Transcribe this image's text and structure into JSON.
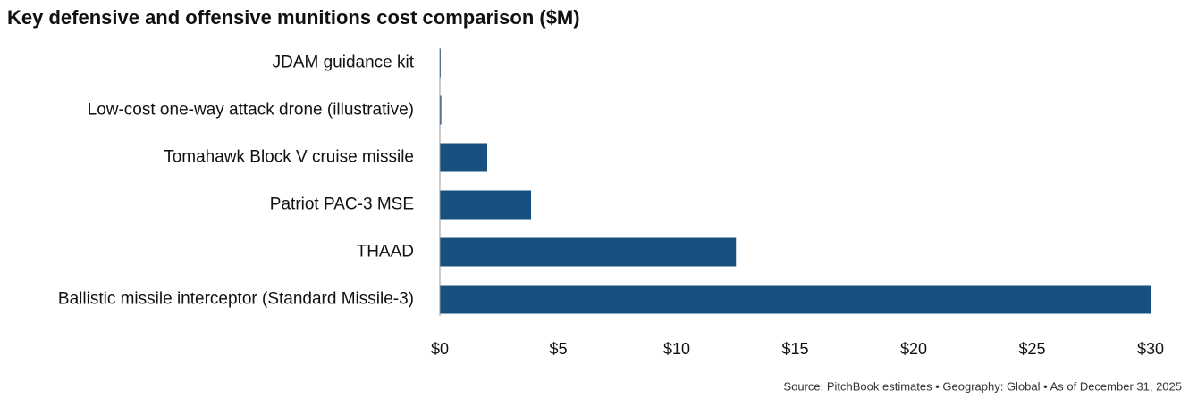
{
  "chart_data": {
    "type": "bar",
    "orientation": "horizontal",
    "title": "Key defensive and offensive munitions cost comparison ($M)",
    "categories": [
      "JDAM guidance kit",
      "Low-cost one-way attack drone (illustrative)",
      "Tomahawk Block V cruise missile",
      "Patriot PAC-3 MSE",
      "THAAD",
      "Ballistic missile interceptor (Standard Missile-3)"
    ],
    "values": [
      0.03,
      0.06,
      2.0,
      3.85,
      12.5,
      30
    ],
    "color": "#17507f",
    "xlim": [
      0,
      30
    ],
    "xticks": [
      {
        "value": 0,
        "label": "$0"
      },
      {
        "value": 5,
        "label": "$5"
      },
      {
        "value": 10,
        "label": "$10"
      },
      {
        "value": 15,
        "label": "$15"
      },
      {
        "value": 20,
        "label": "$20"
      },
      {
        "value": 25,
        "label": "$25"
      },
      {
        "value": 30,
        "label": "$30"
      }
    ],
    "source": "Source: PitchBook estimates  •  Geography: Global  •  As of December 31, 2025"
  }
}
